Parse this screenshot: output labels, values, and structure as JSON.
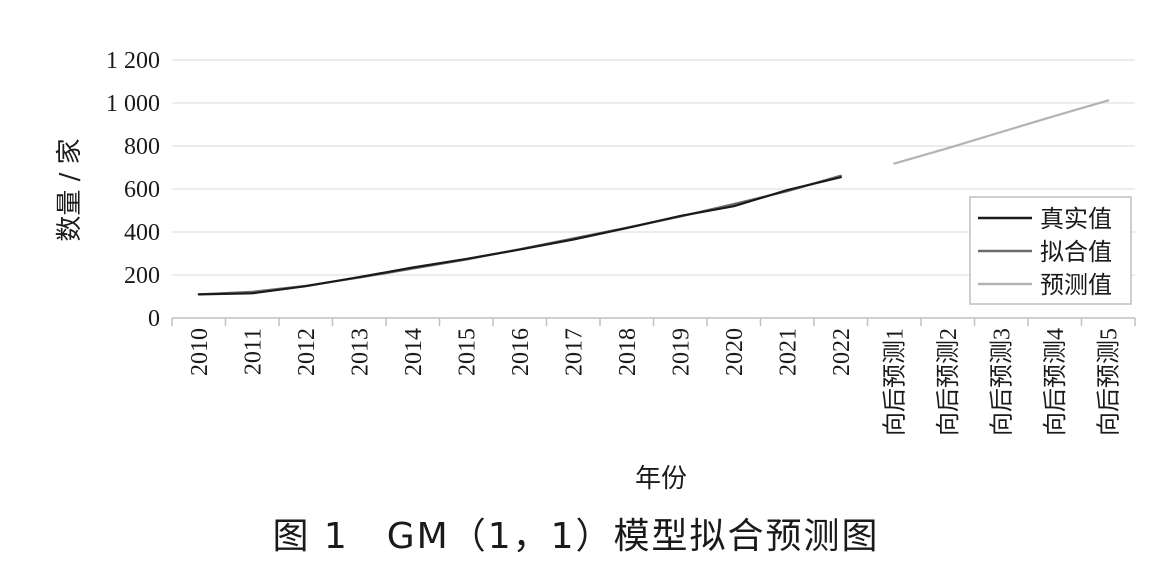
{
  "chart_data": {
    "type": "line",
    "xlabel": "年份",
    "ylabel": "数量 / 家",
    "categories": [
      "2010",
      "2011",
      "2012",
      "2013",
      "2014",
      "2015",
      "2016",
      "2017",
      "2018",
      "2019",
      "2020",
      "2021",
      "2022",
      "向后预测1",
      "向后预测2",
      "向后预测3",
      "向后预测4",
      "向后预测5"
    ],
    "yticks": [
      "0",
      "200",
      "400",
      "600",
      "800",
      "1 000",
      "1 200"
    ],
    "ylim": [
      0,
      1200
    ],
    "grid": "horizontal",
    "legend_position": "right",
    "series": [
      {
        "name": "真实值",
        "color": "#1a1a1a",
        "values": [
          110,
          115,
          148,
          190,
          235,
          275,
          318,
          365,
          418,
          475,
          520,
          595,
          655,
          null,
          null,
          null,
          null,
          null
        ]
      },
      {
        "name": "拟合值",
        "color": "#6b6b6b",
        "values": [
          110,
          122,
          150,
          188,
          230,
          272,
          320,
          370,
          420,
          472,
          530,
          590,
          662,
          null,
          null,
          null,
          null,
          null
        ]
      },
      {
        "name": "预测值",
        "color": "#b3b3b3",
        "values": [
          null,
          null,
          null,
          null,
          null,
          null,
          null,
          null,
          null,
          null,
          null,
          null,
          null,
          718,
          790,
          865,
          940,
          1012
        ]
      }
    ]
  },
  "caption": "图 1　GM（1，1）模型拟合预测图"
}
